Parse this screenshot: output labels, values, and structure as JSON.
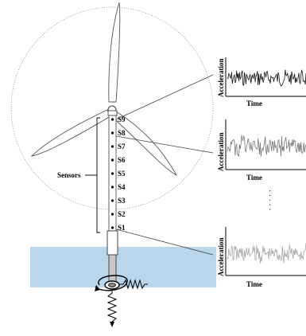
{
  "colors": {
    "water": "#b9d6ea",
    "signal_top": "#111111",
    "signal_mid": "#777777",
    "signal_bottom": "#a9a9a9",
    "line": "#444444"
  },
  "diagram": {
    "sensors_label": "Sensors",
    "sensor_labels": [
      "S9",
      "S8",
      "S7",
      "S6",
      "S5",
      "S4",
      "S3",
      "S2",
      "S1"
    ],
    "plots": [
      {
        "ylabel": "Acceleration",
        "xlabel": "Time"
      },
      {
        "ylabel": "Acceleration",
        "xlabel": "Time"
      },
      {
        "ylabel": "Acceleration",
        "xlabel": "Time"
      }
    ],
    "ellipsis": "· · · · ·"
  }
}
